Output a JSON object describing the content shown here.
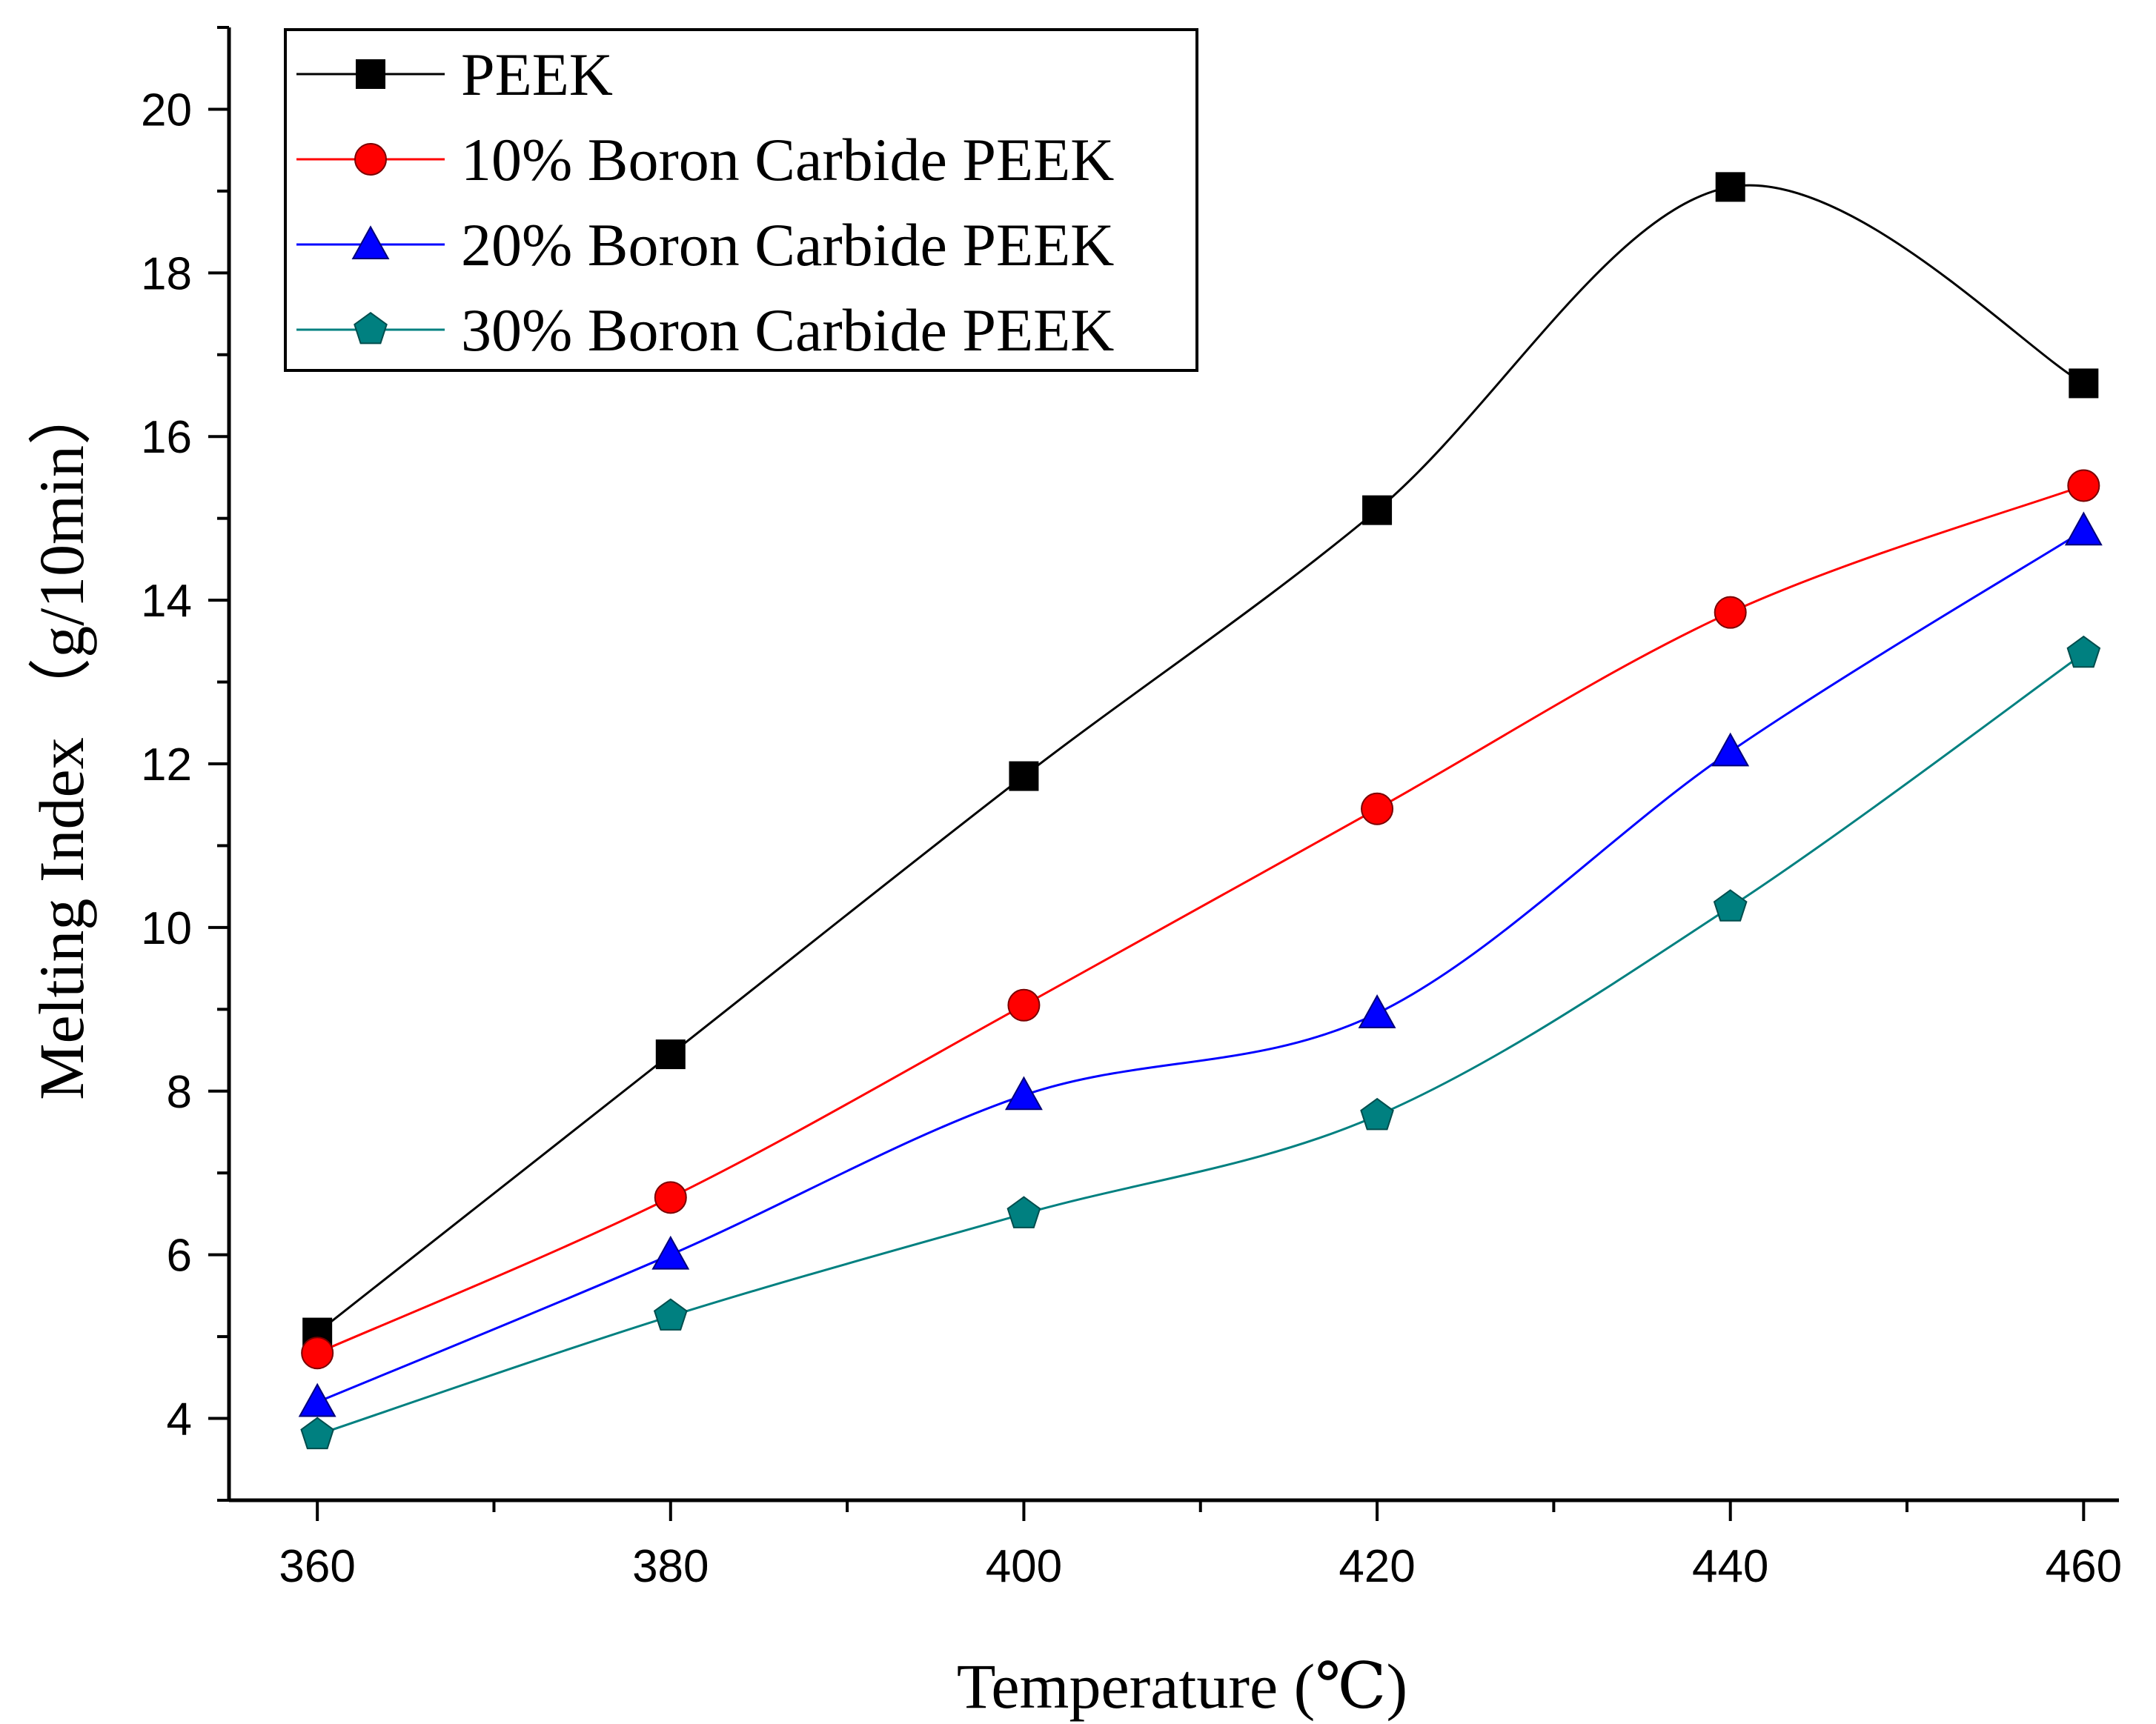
{
  "chart_data": {
    "type": "line",
    "title": "",
    "xlabel": "Temperature (℃)",
    "ylabel": "Melting Index （g/10min）",
    "x": [
      360,
      380,
      400,
      420,
      440,
      460
    ],
    "xlim": [
      355,
      462
    ],
    "ylim": [
      3,
      21
    ],
    "xticks": [
      360,
      380,
      400,
      420,
      440,
      460
    ],
    "yticks": [
      4,
      6,
      8,
      10,
      12,
      14,
      16,
      18,
      20
    ],
    "grid": false,
    "legend_position": "top-left",
    "series": [
      {
        "name": "PEEK",
        "marker": "square",
        "color": "#000000",
        "values": [
          5.05,
          8.45,
          11.85,
          15.1,
          19.05,
          16.65
        ]
      },
      {
        "name": "10% Boron Carbide PEEK",
        "marker": "circle",
        "color": "#ff0000",
        "values": [
          4.8,
          6.7,
          9.05,
          11.45,
          13.85,
          15.4
        ]
      },
      {
        "name": "20% Boron Carbide PEEK",
        "marker": "triangle",
        "color": "#0000ff",
        "values": [
          4.2,
          6.0,
          7.95,
          8.95,
          12.15,
          14.85
        ]
      },
      {
        "name": "30% Boron Carbide PEEK",
        "marker": "pentagon",
        "color": "#008080",
        "values": [
          3.8,
          5.25,
          6.5,
          7.7,
          10.25,
          13.35
        ]
      }
    ]
  }
}
